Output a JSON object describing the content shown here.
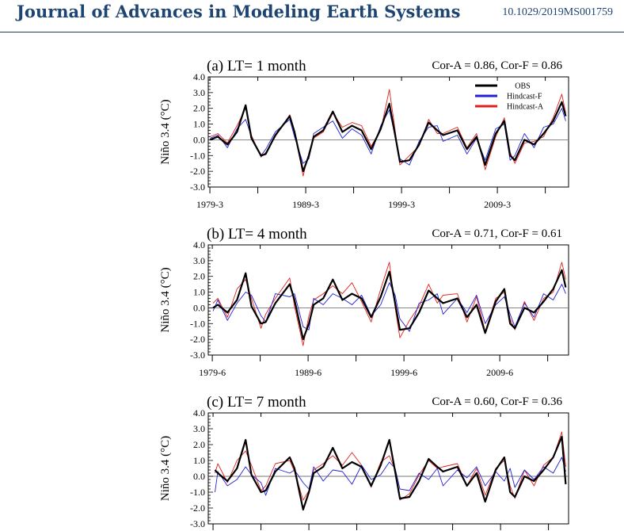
{
  "header": {
    "journal": "Journal of Advances in Modeling Earth Systems",
    "doi": "10.1029/2019MS001759"
  },
  "colors": {
    "obs": "#000000",
    "hindcast_f": "#1f1fd6",
    "hindcast_a": "#e0201c",
    "header": "#1e4472"
  },
  "chart_data": [
    {
      "type": "line",
      "panel": "(a) LT= 1 month",
      "corr": "Cor-A = 0.86, Cor-F = 0.86",
      "ylabel": "Niño 3.4 (°C)",
      "ylim": [
        -3.0,
        4.0
      ],
      "yticks": [
        "4.0",
        "3.0",
        "2.0",
        "1.0",
        "0.0",
        "-1.0",
        "-2.0",
        "-3.0"
      ],
      "xlim": [
        1979,
        2016.6
      ],
      "xticks": [
        {
          "x": 1979.17,
          "label": "1979-3"
        },
        {
          "x": 1989.17,
          "label": "1989-3"
        },
        {
          "x": 1999.17,
          "label": "1999-3"
        },
        {
          "x": 2009.17,
          "label": "2009-3"
        }
      ],
      "legend": [
        "OBS",
        "Hindcast-F",
        "Hindcast-A"
      ],
      "legend_position": "top-right",
      "series": [
        {
          "name": "OBS",
          "x": [
            1979.2,
            1980,
            1981,
            1982,
            1982.9,
            1983.5,
            1984.5,
            1985,
            1986,
            1987.5,
            1988,
            1988.9,
            1989.5,
            1990,
            1991,
            1992,
            1993,
            1994,
            1995,
            1996,
            1997,
            1997.9,
            1998.5,
            1999,
            2000,
            2001,
            2002,
            2002.9,
            2003.5,
            2005,
            2006,
            2007,
            2007.9,
            2009,
            2009.9,
            2010.5,
            2011,
            2012,
            2013,
            2014,
            2015,
            2015.9,
            2016.3
          ],
          "y": [
            0,
            0.2,
            -0.3,
            0.5,
            2.2,
            0.1,
            -1.0,
            -0.9,
            0.3,
            1.5,
            0.5,
            -2.0,
            -1.0,
            0.2,
            0.6,
            1.8,
            0.5,
            0.9,
            0.6,
            -0.6,
            0.7,
            2.3,
            0.3,
            -1.4,
            -1.3,
            -0.3,
            1.1,
            0.6,
            0.3,
            0.6,
            -0.6,
            0.2,
            -1.6,
            0.4,
            1.2,
            -1.0,
            -1.3,
            0.0,
            -0.3,
            0.4,
            1.2,
            2.4,
            1.5
          ]
        },
        {
          "name": "Hindcast-F",
          "x": [
            1979.2,
            1980,
            1981,
            1982,
            1982.9,
            1983.5,
            1984.5,
            1985,
            1986,
            1987.5,
            1988,
            1988.9,
            1989.5,
            1990,
            1991,
            1992,
            1993,
            1994,
            1995,
            1996,
            1997,
            1997.9,
            1998.5,
            1999,
            2000,
            2001,
            2002,
            2002.9,
            2003.5,
            2005,
            2006,
            2007,
            2007.9,
            2009,
            2009.9,
            2010.5,
            2011,
            2012,
            2013,
            2014,
            2015,
            2015.9,
            2016.3
          ],
          "y": [
            0.1,
            0.3,
            -0.5,
            0.7,
            1.3,
            0.2,
            -1.0,
            -0.6,
            0.5,
            1.3,
            0.2,
            -1.5,
            -1.2,
            0.4,
            0.8,
            1.2,
            0.1,
            0.7,
            0.3,
            -0.9,
            0.9,
            1.9,
            0.2,
            -1.2,
            -1.6,
            -0.1,
            0.8,
            0.9,
            -0.1,
            0.3,
            -0.9,
            0.1,
            -1.3,
            0.7,
            1.0,
            -1.3,
            -1.0,
            0.4,
            -0.5,
            0.8,
            1.0,
            2.0,
            1.2
          ]
        },
        {
          "name": "Hindcast-A",
          "x": [
            1979.2,
            1980,
            1981,
            1982,
            1982.9,
            1983.5,
            1984.5,
            1985,
            1986,
            1987.5,
            1988,
            1988.9,
            1989.5,
            1990,
            1991,
            1992,
            1993,
            1994,
            1995,
            1996,
            1997,
            1997.9,
            1998.5,
            1999,
            2000,
            2001,
            2002,
            2002.9,
            2003.5,
            2005,
            2006,
            2007,
            2007.9,
            2009,
            2009.9,
            2010.5,
            2011,
            2012,
            2013,
            2014,
            2015,
            2015.9,
            2016.3
          ],
          "y": [
            0.2,
            0.4,
            -0.2,
            0.9,
            2.0,
            0.3,
            -1.1,
            -0.8,
            0.2,
            1.6,
            0.6,
            -2.3,
            -0.8,
            0.1,
            0.5,
            1.7,
            0.8,
            1.1,
            0.9,
            -0.4,
            0.6,
            3.2,
            0.6,
            -1.6,
            -1.0,
            -0.4,
            1.3,
            0.4,
            0.4,
            0.8,
            -0.5,
            0.4,
            -1.9,
            0.2,
            1.4,
            -0.8,
            -1.5,
            -0.2,
            -0.1,
            0.2,
            1.4,
            2.9,
            1.7
          ]
        }
      ]
    },
    {
      "type": "line",
      "panel": "(b) LT= 4 month",
      "corr": "Cor-A = 0.71, Cor-F = 0.61",
      "ylabel": "Niño 3.4 (°C)",
      "ylim": [
        -3.0,
        4.0
      ],
      "yticks": [
        "4.0",
        "3.0",
        "2.0",
        "1.0",
        "0.0",
        "-1.0",
        "-2.0",
        "-3.0"
      ],
      "xlim": [
        1979,
        2016.6
      ],
      "xticks": [
        {
          "x": 1979.42,
          "label": "1979-6"
        },
        {
          "x": 1989.42,
          "label": "1989-6"
        },
        {
          "x": 1999.42,
          "label": "1999-6"
        },
        {
          "x": 2009.42,
          "label": "2009-6"
        }
      ],
      "series": [
        {
          "name": "OBS",
          "x": [
            1979.5,
            1980,
            1981,
            1982,
            1982.9,
            1983.5,
            1984.5,
            1985,
            1986,
            1987.5,
            1988,
            1988.9,
            1989.5,
            1990,
            1991,
            1992,
            1993,
            1994,
            1995,
            1996,
            1997,
            1997.9,
            1998.5,
            1999,
            2000,
            2001,
            2002,
            2002.9,
            2003.5,
            2005,
            2006,
            2007,
            2007.9,
            2009,
            2009.9,
            2010.5,
            2011,
            2012,
            2013,
            2014,
            2015,
            2015.9,
            2016.3
          ],
          "y": [
            0,
            0.2,
            -0.3,
            0.5,
            2.2,
            0.1,
            -1.0,
            -0.9,
            0.3,
            1.5,
            0.5,
            -2.0,
            -1.0,
            0.2,
            0.6,
            1.8,
            0.5,
            0.9,
            0.6,
            -0.6,
            0.7,
            2.3,
            0.3,
            -1.4,
            -1.3,
            -0.3,
            1.1,
            0.6,
            0.3,
            0.6,
            -0.6,
            0.2,
            -1.6,
            0.4,
            1.2,
            -1.0,
            -1.3,
            0.0,
            -0.3,
            0.4,
            1.2,
            2.4,
            1.3
          ]
        },
        {
          "name": "Hindcast-F",
          "x": [
            1979.5,
            1980,
            1981,
            1982,
            1982.9,
            1983.5,
            1984.5,
            1985,
            1986,
            1987.5,
            1988,
            1988.9,
            1989.5,
            1990,
            1991,
            1992,
            1993,
            1994,
            1995,
            1996,
            1997,
            1997.9,
            1998.5,
            1999,
            2000,
            2001,
            2002,
            2002.9,
            2003.5,
            2005,
            2006,
            2007,
            2007.9,
            2009,
            2009.9,
            2010.5,
            2011,
            2012,
            2013,
            2014,
            2015,
            2015.9,
            2016.3
          ],
          "y": [
            -0.2,
            0.5,
            -0.8,
            0.3,
            1.0,
            0.8,
            -0.5,
            -0.9,
            0.9,
            0.7,
            0.9,
            -1.2,
            -1.4,
            0.6,
            0.2,
            0.9,
            0.6,
            0.2,
            0.8,
            -0.5,
            0.2,
            1.6,
            0.8,
            -0.7,
            -1.5,
            0.3,
            0.5,
            0.9,
            -0.4,
            0.6,
            -0.3,
            0.8,
            -1.0,
            0.2,
            0.7,
            -0.4,
            -1.2,
            0.3,
            -0.6,
            0.9,
            0.5,
            1.5,
            0.9
          ]
        },
        {
          "name": "Hindcast-A",
          "x": [
            1979.5,
            1980,
            1981,
            1982,
            1982.9,
            1983.5,
            1984.5,
            1985,
            1986,
            1987.5,
            1988,
            1988.9,
            1989.5,
            1990,
            1991,
            1992,
            1993,
            1994,
            1995,
            1996,
            1997,
            1997.9,
            1998.5,
            1999,
            2000,
            2001,
            2002,
            2002.9,
            2003.5,
            2005,
            2006,
            2007,
            2007.9,
            2009,
            2009.9,
            2010.5,
            2011,
            2012,
            2013,
            2014,
            2015,
            2015.9,
            2016.3
          ],
          "y": [
            0.3,
            0.6,
            -0.6,
            1.2,
            1.8,
            0.6,
            -1.3,
            -0.4,
            0.6,
            1.9,
            0.1,
            -2.4,
            -0.5,
            0.5,
            0.9,
            1.4,
            0.9,
            1.6,
            0.4,
            -0.9,
            1.2,
            2.9,
            0.0,
            -1.9,
            -0.8,
            0.1,
            1.5,
            0.3,
            0.8,
            0.9,
            -0.9,
            0.7,
            -1.5,
            0.6,
            1.0,
            -0.7,
            -1.4,
            0.4,
            -0.8,
            0.6,
            1.0,
            2.9,
            1.8
          ]
        }
      ]
    },
    {
      "type": "line",
      "panel": "(c) LT= 7 month",
      "corr": "Cor-A = 0.60, Cor-F = 0.36",
      "ylabel": "Niño 3.4 (°C)",
      "ylim": [
        -3.0,
        4.0
      ],
      "yticks": [
        "4.0",
        "3.0",
        "2.0",
        "1.0",
        "0.0",
        "-1.0",
        "-2.0",
        "-3.0"
      ],
      "xlim": [
        1979,
        2016.6
      ],
      "series": [
        {
          "name": "OBS",
          "x": [
            1979.7,
            1980,
            1981,
            1982,
            1982.9,
            1983.5,
            1984.5,
            1985,
            1986,
            1987.5,
            1988,
            1988.9,
            1989.5,
            1990,
            1991,
            1992,
            1993,
            1994,
            1995,
            1996,
            1997,
            1997.9,
            1998.5,
            1999,
            2000,
            2001,
            2002,
            2002.9,
            2003.5,
            2005,
            2006,
            2007,
            2007.9,
            2009,
            2009.9,
            2010.5,
            2011,
            2012,
            2013,
            2014,
            2015,
            2015.9,
            2016.3
          ],
          "y": [
            0.4,
            0.2,
            -0.3,
            0.5,
            2.3,
            0.1,
            -1.0,
            -0.9,
            0.3,
            1.2,
            0.5,
            -2.1,
            -1.0,
            0.2,
            0.6,
            1.8,
            0.5,
            0.9,
            0.6,
            -0.6,
            0.7,
            2.3,
            0.3,
            -1.4,
            -1.3,
            -0.3,
            1.1,
            0.6,
            0.3,
            0.6,
            -0.6,
            0.2,
            -1.6,
            0.4,
            1.2,
            -1.0,
            -1.3,
            0.0,
            -0.3,
            0.4,
            1.2,
            2.5,
            -0.5
          ]
        },
        {
          "name": "Hindcast-F",
          "x": [
            1979.7,
            1980,
            1981,
            1982,
            1982.9,
            1983.5,
            1984.5,
            1985,
            1986,
            1987.5,
            1988,
            1988.9,
            1989.5,
            1990,
            1991,
            1992,
            1993,
            1994,
            1995,
            1996,
            1997,
            1997.9,
            1998.5,
            1999,
            2000,
            2001,
            2002,
            2002.9,
            2003.5,
            2005,
            2006,
            2007,
            2007.9,
            2009,
            2009.9,
            2010.5,
            2011,
            2012,
            2013,
            2014,
            2015,
            2015.9,
            2016.3
          ],
          "y": [
            -1.0,
            0.3,
            -0.6,
            -0.2,
            0.6,
            0.1,
            -0.4,
            -1.2,
            0.5,
            0.2,
            0.4,
            -0.4,
            -0.8,
            0.6,
            -0.3,
            0.4,
            0.3,
            -0.5,
            0.7,
            -0.2,
            0.1,
            0.9,
            0.5,
            -0.8,
            -0.9,
            0.2,
            -0.2,
            0.5,
            -0.6,
            0.4,
            -0.1,
            0.6,
            -0.6,
            0.3,
            -0.3,
            0.5,
            -0.7,
            0.4,
            -0.2,
            0.6,
            0.2,
            1.2,
            0.3
          ]
        },
        {
          "name": "Hindcast-A",
          "x": [
            1979.7,
            1980,
            1981,
            1982,
            1982.9,
            1983.5,
            1984.5,
            1985,
            1986,
            1987.5,
            1988,
            1988.9,
            1989.5,
            1990,
            1991,
            1992,
            1993,
            1994,
            1995,
            1996,
            1997,
            1997.9,
            1998.5,
            1999,
            2000,
            2001,
            2002,
            2002.9,
            2003.5,
            2005,
            2006,
            2007,
            2007.9,
            2009,
            2009.9,
            2010.5,
            2011,
            2012,
            2013,
            2014,
            2015,
            2015.9,
            2016.3
          ],
          "y": [
            0.2,
            0.8,
            -0.4,
            1.0,
            1.6,
            0.7,
            -0.9,
            -0.6,
            0.8,
            1.0,
            0.3,
            -1.5,
            -0.9,
            0.4,
            0.8,
            1.3,
            0.7,
            1.5,
            0.7,
            -0.7,
            0.9,
            1.3,
            0.4,
            -1.5,
            -1.1,
            0.1,
            1.0,
            0.5,
            0.6,
            0.8,
            -0.6,
            0.5,
            -1.2,
            0.5,
            1.0,
            -0.6,
            -1.4,
            0.4,
            -0.6,
            0.7,
            1.2,
            2.8,
            0.6
          ]
        }
      ]
    }
  ]
}
